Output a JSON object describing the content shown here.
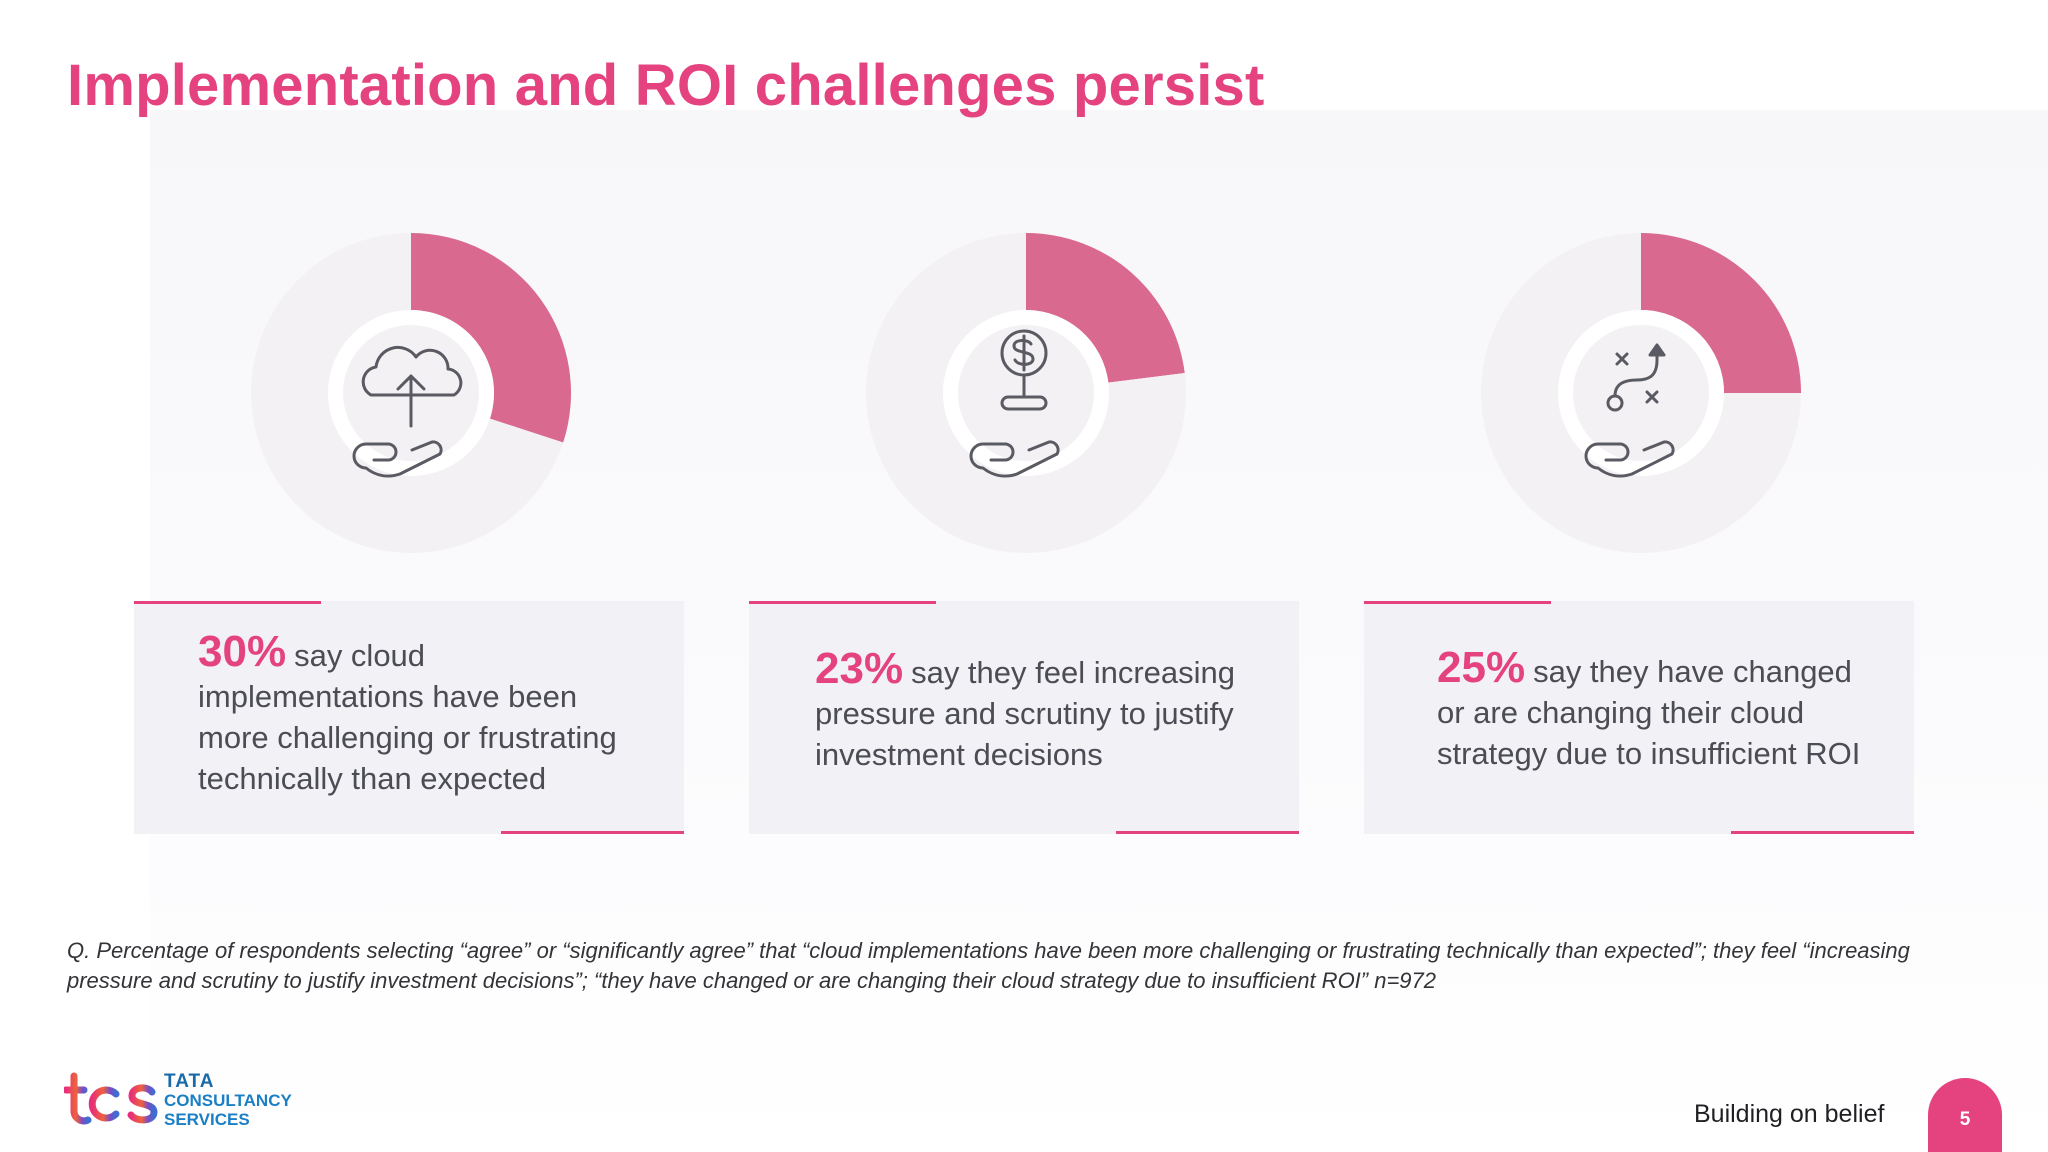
{
  "title": "Implementation and ROI challenges persist",
  "chart_data": [
    {
      "type": "pie",
      "values": [
        30,
        70
      ],
      "labels": [
        "30%",
        ""
      ],
      "colors": [
        "#d9698f",
        "#f3f1f4"
      ],
      "icon": "cloud-upload-hand-icon"
    },
    {
      "type": "pie",
      "values": [
        23,
        77
      ],
      "labels": [
        "23%",
        ""
      ],
      "colors": [
        "#d9698f",
        "#f3f1f4"
      ],
      "icon": "dollar-coin-hand-icon"
    },
    {
      "type": "pie",
      "values": [
        25,
        75
      ],
      "labels": [
        "25%",
        ""
      ],
      "colors": [
        "#d9698f",
        "#f3f1f4"
      ],
      "icon": "strategy-path-hand-icon"
    }
  ],
  "stats": [
    {
      "percent": "30%",
      "text": "say cloud implementations have been more challenging or frustrating technically than expected"
    },
    {
      "percent": "23%",
      "text": "say they feel increasing pressure and scrutiny to justify investment decisions"
    },
    {
      "percent": "25%",
      "text": "say they have changed or are changing their cloud strategy due to insufficient ROI"
    }
  ],
  "footnote": "Q. Percentage of respondents selecting “agree” or “significantly agree” that “cloud implementations have been more challenging or frustrating technically than expected”; they feel “increasing pressure and scrutiny to  justify investment decisions”; “they have changed or are changing their cloud strategy due to insufficient ROI”  n=972",
  "logo": {
    "mark": "tcs",
    "line1": "TATA",
    "line2": "CONSULTANCY",
    "line3": "SERVICES"
  },
  "tagline": "Building on belief",
  "page_number": "5",
  "colors": {
    "accent": "#e4437f",
    "slice": "#d9698f",
    "ring": "#f3f1f4",
    "card": "#f1f1f6"
  }
}
